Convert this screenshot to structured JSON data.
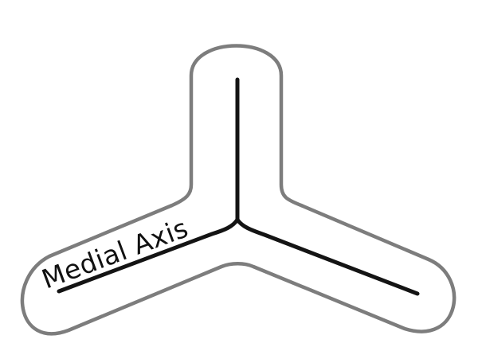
{
  "diagram": {
    "label": "Medial Axis",
    "colors": {
      "outline": "#7d7d7d",
      "axis": "#141414",
      "label": "#111111",
      "background": "#ffffff"
    }
  }
}
